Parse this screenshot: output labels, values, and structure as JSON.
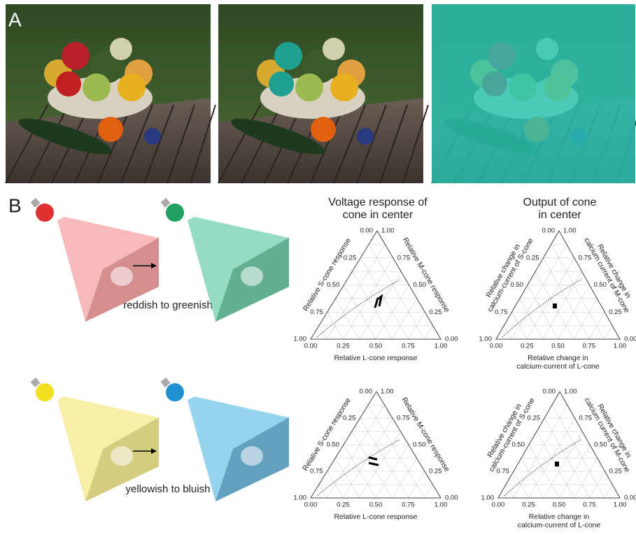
{
  "panels": {
    "a": "A",
    "b": "B"
  },
  "captions": [
    "reddish to greenish",
    "yellowish to bluish"
  ],
  "plots": [
    {
      "title": [
        "Voltage response of",
        "cone in center"
      ],
      "left_label": [
        "Relative S-cone response"
      ],
      "right_label": [
        "Relative M-cone response"
      ],
      "bottom_label": [
        "Relative L-cone response"
      ],
      "left_ticks": [
        "0.00",
        "0.25",
        "0.50",
        "0.75",
        "1.00"
      ],
      "right_ticks": [
        "1.00",
        "0.75",
        "0.50",
        "0.25",
        "0.00"
      ],
      "bottom_ticks": [
        "0.00",
        "0.25",
        "0.50",
        "0.75",
        "1.00"
      ]
    },
    {
      "title": [
        "Output of cone",
        "in center"
      ],
      "left_label": [
        "Relative change in",
        "calcium-current of S-cone"
      ],
      "right_label": [
        "Relative change in",
        "calcium current of M-cone"
      ],
      "bottom_label": [
        "Relative change in",
        "calcium-current of L-cone"
      ],
      "left_ticks": [
        "0.00",
        "0.25",
        "0.50",
        "0.75",
        "1.00"
      ],
      "right_ticks": [
        "1.00",
        "0.75",
        "0.50",
        "0.25",
        "0.00"
      ],
      "bottom_ticks": [
        "0.00",
        "0.25",
        "0.50",
        "0.75",
        "1.00"
      ]
    },
    {
      "left_label": [
        "Relative S-cone response"
      ],
      "right_label": [
        "Relative M-cone response"
      ],
      "bottom_label": [
        "Relative L-cone response"
      ],
      "left_ticks": [
        "0.00",
        "0.25",
        "0.50",
        "0.75",
        "1.00"
      ],
      "right_ticks": [
        "1.00",
        "0.75",
        "0.50",
        "0.25",
        "0.00"
      ],
      "bottom_ticks": [
        "0.00",
        "0.25",
        "0.50",
        "0.75",
        "1.00"
      ]
    },
    {
      "left_label": [
        "Relative change in",
        "calcium-current of S-cone"
      ],
      "right_label": [
        "Relative change in",
        "calcium current of M-cone"
      ],
      "bottom_label": [
        "Relative change in",
        "calcium-current of L-cone"
      ],
      "left_ticks": [
        "0.00",
        "0.25",
        "0.50",
        "0.75",
        "1.00"
      ],
      "right_ticks": [
        "1.00",
        "0.75",
        "0.50",
        "0.25",
        "0.00"
      ],
      "bottom_ticks": [
        "0.00",
        "0.25",
        "0.50",
        "0.75",
        "1.00"
      ]
    }
  ]
}
